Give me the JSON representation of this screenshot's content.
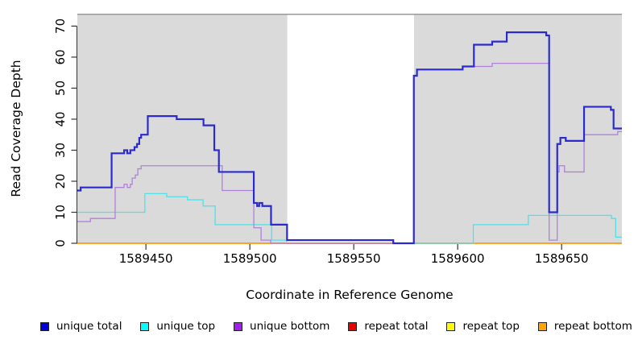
{
  "chart_data": {
    "type": "line",
    "step_style": true,
    "title": "",
    "xlabel": "Coordinate in Reference Genome",
    "ylabel": "Read Coverage Depth",
    "xlim": [
      1589417,
      1589679
    ],
    "ylim": [
      0,
      74
    ],
    "x_ticks": [
      1589450,
      1589500,
      1589550,
      1589600,
      1589650
    ],
    "y_ticks": [
      0,
      10,
      20,
      30,
      40,
      50,
      60,
      70
    ],
    "plot_bg_color": "#dadada",
    "axis_color": "#333333",
    "masked_region": {
      "x_start": 1589518,
      "x_end": 1589579,
      "fill": "#ffffff",
      "top_border": "#9a9a9a"
    },
    "overlay_zero_in_masked_region": "repeat total",
    "series": [
      {
        "name": "repeat top",
        "color": "#ffff00",
        "width": 1.2,
        "points": [
          [
            1589417,
            0
          ]
        ]
      },
      {
        "name": "repeat total",
        "color": "#e0556e",
        "width": 1.3,
        "points": [
          [
            1589417,
            0
          ]
        ]
      },
      {
        "name": "repeat bottom",
        "color": "#ff9d1a",
        "width": 1.8,
        "points": [
          [
            1589417,
            0
          ]
        ]
      },
      {
        "name": "unique top",
        "color": "#4fe1e8",
        "width": 1.3,
        "points": [
          [
            1589417,
            10
          ],
          [
            1589449.5,
            16
          ],
          [
            1589460,
            15
          ],
          [
            1589470,
            14
          ],
          [
            1589477.5,
            12
          ],
          [
            1589483.3,
            6
          ],
          [
            1589510.5,
            1
          ],
          [
            1589569,
            0
          ],
          [
            1589607.5,
            6
          ],
          [
            1589634,
            9
          ],
          [
            1589674,
            8
          ],
          [
            1589676,
            2
          ]
        ]
      },
      {
        "name": "unique bottom",
        "color": "#b181d9",
        "width": 1.3,
        "points": [
          [
            1589417,
            7
          ],
          [
            1589423.3,
            8
          ],
          [
            1589435.2,
            18
          ],
          [
            1589439.5,
            19
          ],
          [
            1589441,
            18
          ],
          [
            1589442.5,
            19
          ],
          [
            1589443.4,
            21
          ],
          [
            1589444.9,
            22
          ],
          [
            1589446.1,
            24
          ],
          [
            1589447.7,
            25
          ],
          [
            1589486.7,
            17
          ],
          [
            1589501.9,
            5
          ],
          [
            1589505.4,
            1
          ],
          [
            1589510,
            0
          ],
          [
            1589578.9,
            54
          ],
          [
            1589580.4,
            56
          ],
          [
            1589602.4,
            57
          ],
          [
            1589616.6,
            58
          ],
          [
            1589644,
            1
          ],
          [
            1589647.9,
            23
          ],
          [
            1589648.8,
            25
          ],
          [
            1589651.4,
            23
          ],
          [
            1589660.8,
            35
          ],
          [
            1589677,
            36
          ]
        ]
      },
      {
        "name": "unique total",
        "color": "#2a2ad0",
        "width": 2.2,
        "points": [
          [
            1589417,
            17
          ],
          [
            1589418.6,
            18
          ],
          [
            1589433.5,
            29
          ],
          [
            1589439.5,
            30
          ],
          [
            1589441,
            29
          ],
          [
            1589442.5,
            30
          ],
          [
            1589444.5,
            31
          ],
          [
            1589445.7,
            32
          ],
          [
            1589446.8,
            34
          ],
          [
            1589447.7,
            35
          ],
          [
            1589450.9,
            41
          ],
          [
            1589464.8,
            40
          ],
          [
            1589477.7,
            38
          ],
          [
            1589482.9,
            30
          ],
          [
            1589485.1,
            23
          ],
          [
            1589501.9,
            13
          ],
          [
            1589503.5,
            12
          ],
          [
            1589504.5,
            13
          ],
          [
            1589506,
            12
          ],
          [
            1589510.2,
            6
          ],
          [
            1589517.9,
            1
          ],
          [
            1589569,
            0
          ],
          [
            1589578.9,
            54
          ],
          [
            1589580.4,
            56
          ],
          [
            1589602.4,
            57
          ],
          [
            1589607.8,
            64
          ],
          [
            1589616.6,
            65
          ],
          [
            1589623.6,
            68
          ],
          [
            1589642.6,
            67
          ],
          [
            1589644,
            10
          ],
          [
            1589647.9,
            32
          ],
          [
            1589649.4,
            34
          ],
          [
            1589652,
            33
          ],
          [
            1589660.8,
            44
          ],
          [
            1589673.7,
            43
          ],
          [
            1589675,
            37
          ]
        ]
      }
    ]
  },
  "legend": {
    "items": [
      {
        "label": "unique total",
        "color": "#0000dd"
      },
      {
        "label": "unique top",
        "color": "#00ffff"
      },
      {
        "label": "unique bottom",
        "color": "#a020f0"
      },
      {
        "label": "repeat total",
        "color": "#ee0000"
      },
      {
        "label": "repeat top",
        "color": "#ffff00"
      },
      {
        "label": "repeat bottom",
        "color": "#ffa500"
      }
    ]
  }
}
